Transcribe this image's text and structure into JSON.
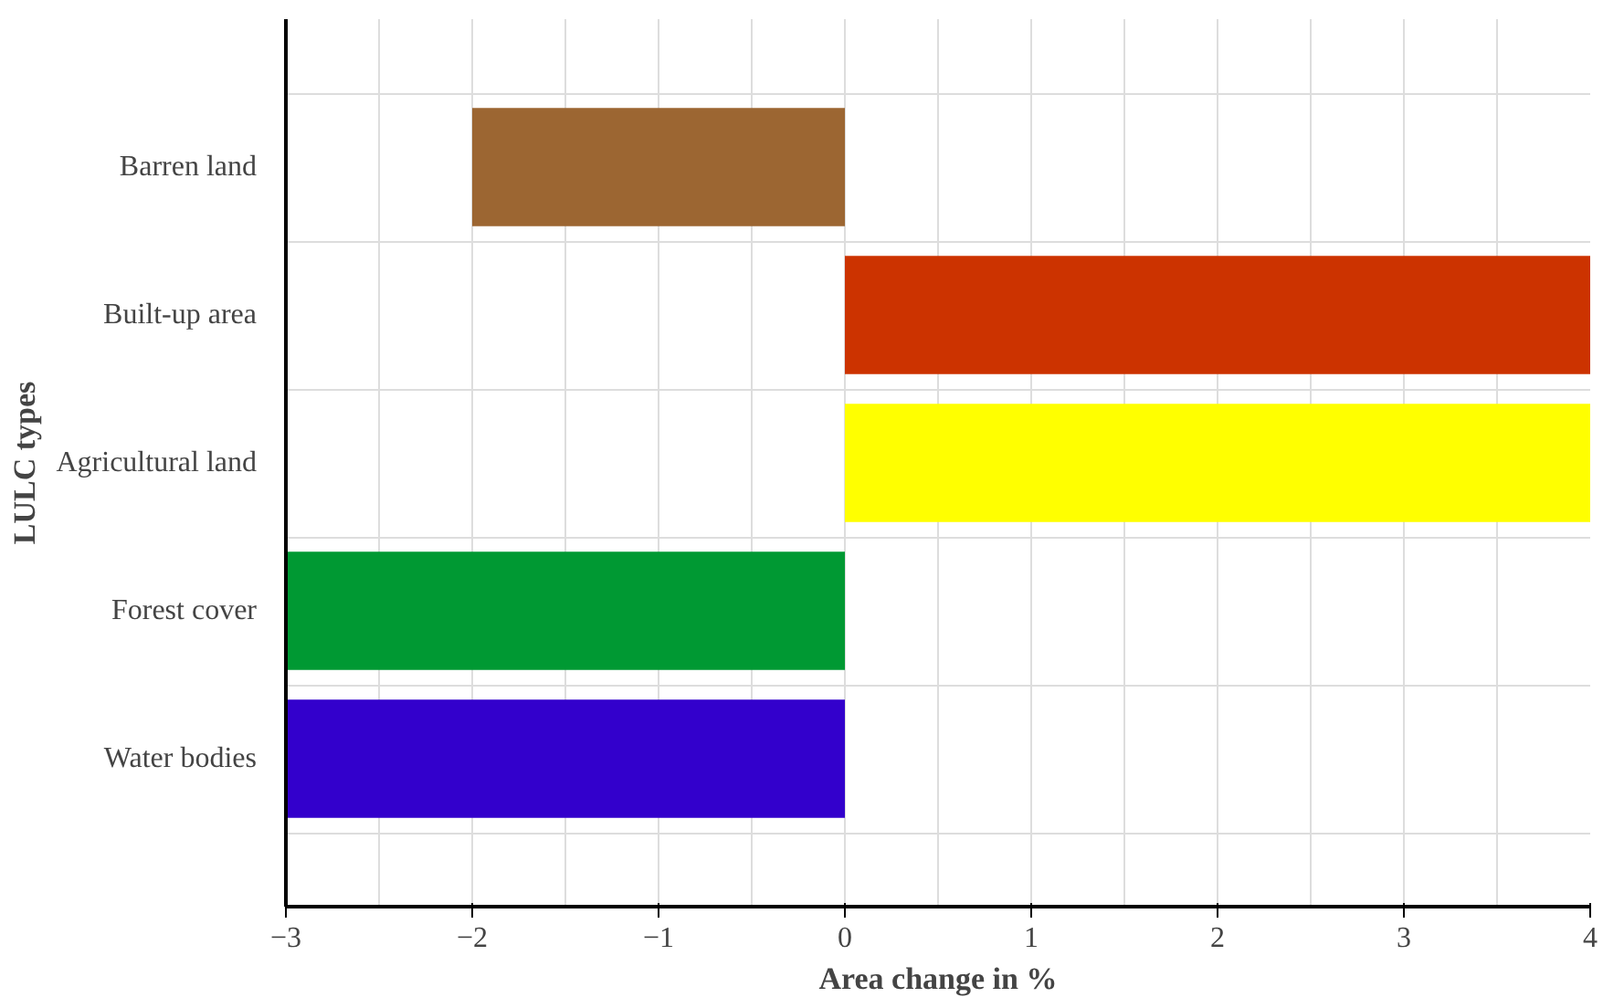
{
  "chart_data": {
    "type": "bar",
    "orientation": "horizontal",
    "xlabel": "Area change in %",
    "ylabel": "LULC types",
    "categories": [
      "Barren land",
      "Built-up area",
      "Agricultural land",
      "Forest cover",
      "Water bodies"
    ],
    "values": [
      -2,
      4,
      4,
      -3,
      -3
    ],
    "colors": [
      "#9c6632",
      "#cc3300",
      "#ffff00",
      "#009933",
      "#3300cc"
    ],
    "xlim": [
      -3,
      4
    ],
    "xticks": [
      -3,
      -2,
      -1,
      0,
      1,
      2,
      3,
      4
    ],
    "grid": true
  }
}
